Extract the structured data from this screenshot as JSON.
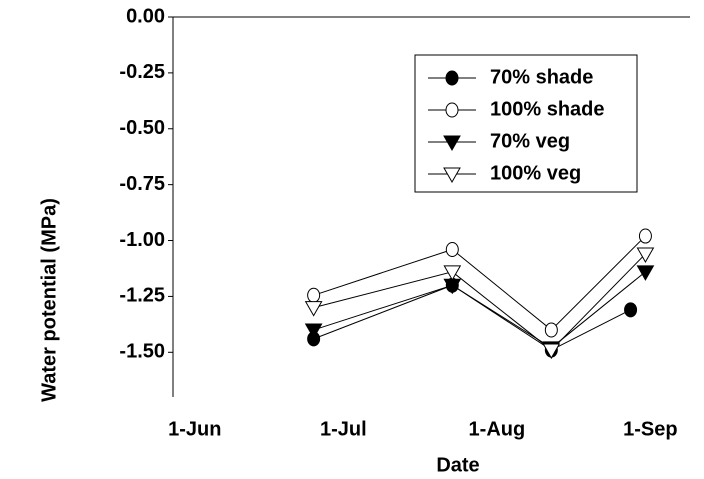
{
  "chart_data": {
    "type": "line",
    "x_label": "Date",
    "y_label": "Water potential (MPa)",
    "xlim": [
      -4.4,
      100
    ],
    "ylim": [
      -1.7,
      0
    ],
    "xticks": [
      {
        "value": 0,
        "label": "1-Jun"
      },
      {
        "value": 30,
        "label": "1-Jul"
      },
      {
        "value": 61,
        "label": "1-Aug"
      },
      {
        "value": 92,
        "label": "1-Sep"
      }
    ],
    "yticks": [
      {
        "value": 0,
        "label": "0.00"
      },
      -0.25,
      {
        "value": -0.5,
        "label": "-0.50"
      },
      -0.75,
      {
        "value": -1,
        "label": "-1.00"
      },
      -1.25,
      {
        "value": -1.5,
        "label": "-1.50"
      }
    ],
    "legend": "upper right",
    "series": [
      {
        "name": "70% shade",
        "color": "#000000",
        "marker": "circle",
        "fill": "#000000",
        "x": [
          24,
          52,
          72,
          88
        ],
        "values": [
          -1.44,
          -1.2,
          -1.49,
          -1.31
        ]
      },
      {
        "name": "100% shade",
        "color": "#000000",
        "marker": "circle",
        "fill": "#ffffff",
        "x": [
          24,
          52,
          72,
          91
        ],
        "values": [
          -1.245,
          -1.04,
          -1.4,
          -0.98
        ]
      },
      {
        "name": "70% veg",
        "color": "#000000",
        "marker": "triangle-down",
        "fill": "#000000",
        "x": [
          24,
          52,
          72,
          91
        ],
        "values": [
          -1.4,
          -1.2,
          -1.48,
          -1.14
        ]
      },
      {
        "name": "100% veg",
        "color": "#000000",
        "marker": "triangle-down",
        "fill": "#ffffff",
        "x": [
          24,
          52,
          72,
          91
        ],
        "values": [
          -1.3,
          -1.14,
          -1.49,
          -1.06
        ]
      }
    ]
  }
}
